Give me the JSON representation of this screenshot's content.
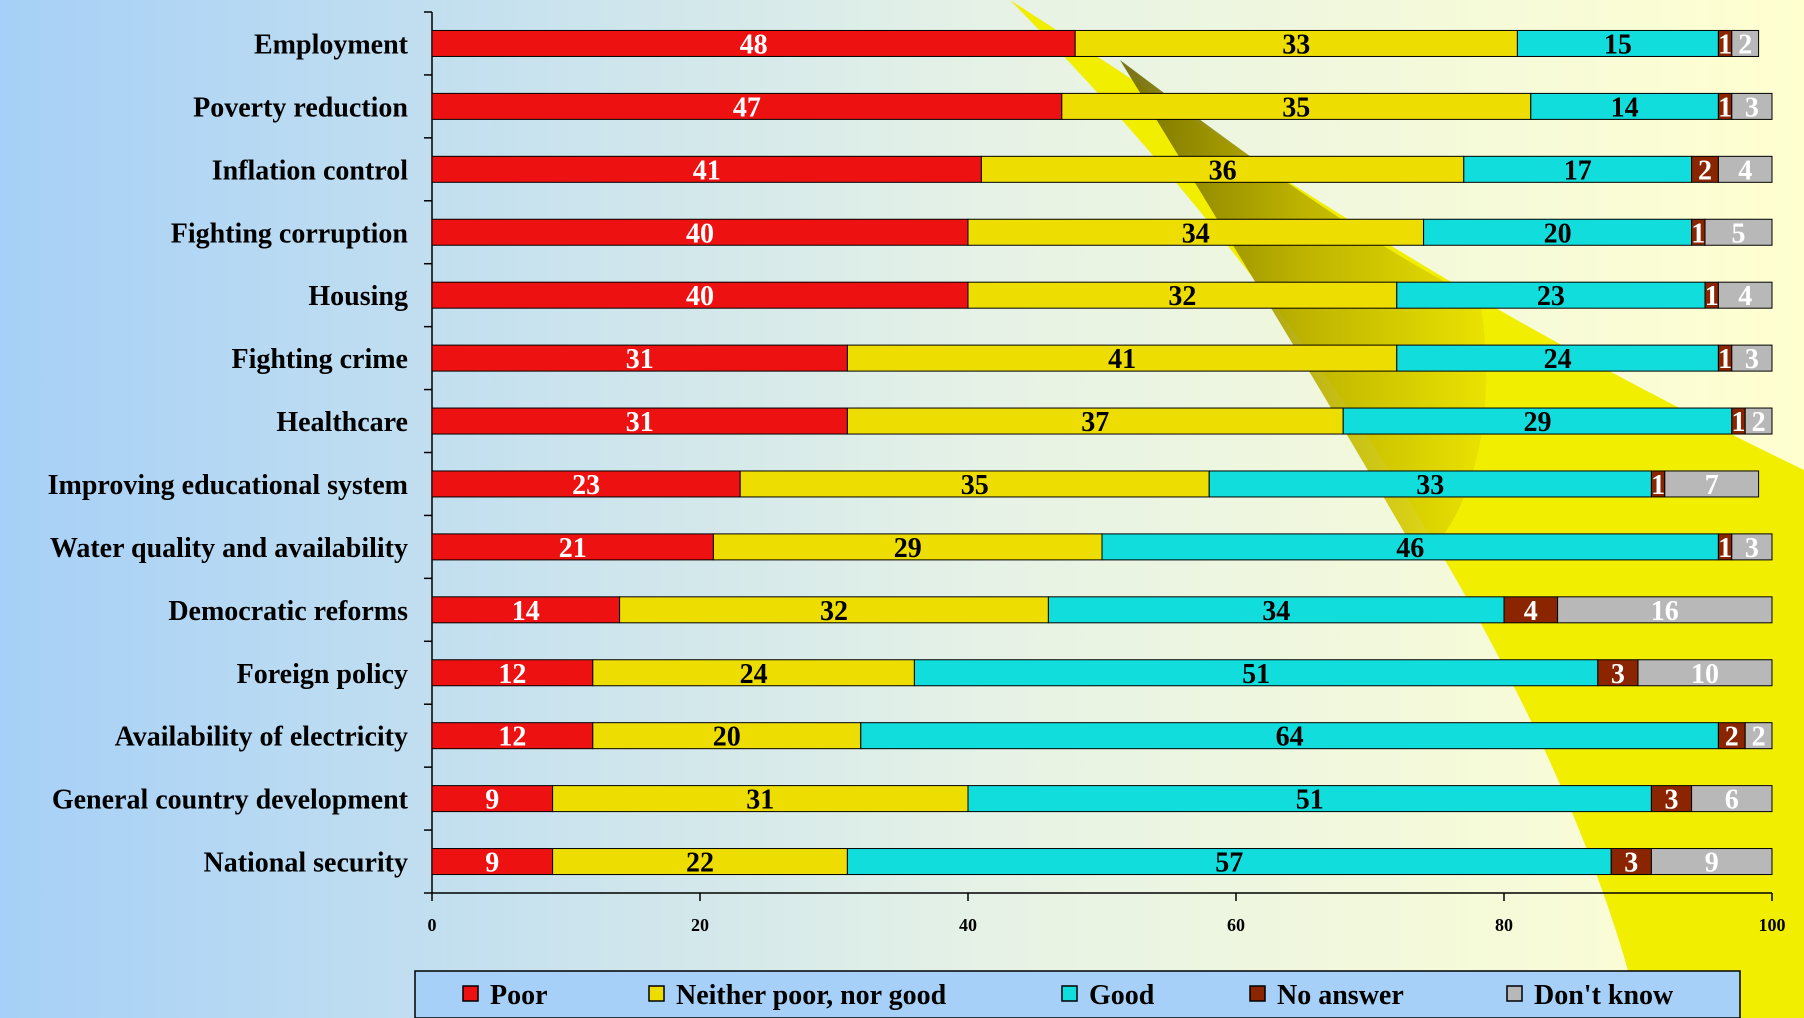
{
  "chart_data": {
    "type": "bar",
    "orientation": "horizontal",
    "stacked": true,
    "categories": [
      "Employment",
      "Poverty reduction",
      "Inflation control",
      "Fighting corruption",
      "Housing",
      "Fighting crime",
      "Healthcare",
      "Improving educational system",
      "Water quality and availability",
      "Democratic reforms",
      "Foreign policy",
      "Availability of electricity",
      "General country development",
      "National security"
    ],
    "series": [
      {
        "name": "Poor",
        "color": "#ee1111",
        "label_color": "#ffffff",
        "values": [
          48,
          47,
          41,
          40,
          40,
          31,
          31,
          23,
          21,
          14,
          12,
          12,
          9,
          9
        ]
      },
      {
        "name": "Neither poor, nor good",
        "color": "#eedd00",
        "label_color": "#000000",
        "values": [
          33,
          35,
          36,
          34,
          32,
          41,
          37,
          35,
          29,
          32,
          24,
          20,
          31,
          22
        ]
      },
      {
        "name": "Good",
        "color": "#11dddd",
        "label_color": "#000000",
        "values": [
          15,
          14,
          17,
          20,
          23,
          24,
          29,
          33,
          46,
          34,
          51,
          64,
          51,
          57
        ]
      },
      {
        "name": "No answer",
        "color": "#8b2500",
        "label_color": "#ffffff",
        "values": [
          1,
          1,
          2,
          1,
          1,
          1,
          1,
          1,
          1,
          4,
          3,
          2,
          3,
          3
        ]
      },
      {
        "name": "Don't know",
        "color": "#b8b8b8",
        "label_color": "#ffffff",
        "values": [
          2,
          3,
          4,
          5,
          4,
          3,
          2,
          7,
          3,
          16,
          10,
          2,
          6,
          9
        ]
      }
    ],
    "xlim": [
      0,
      100
    ],
    "xticks": [
      0,
      20,
      40,
      60,
      80,
      100
    ],
    "xlabel": "",
    "ylabel": "",
    "title": "",
    "grid": false,
    "legend_position": "bottom"
  }
}
